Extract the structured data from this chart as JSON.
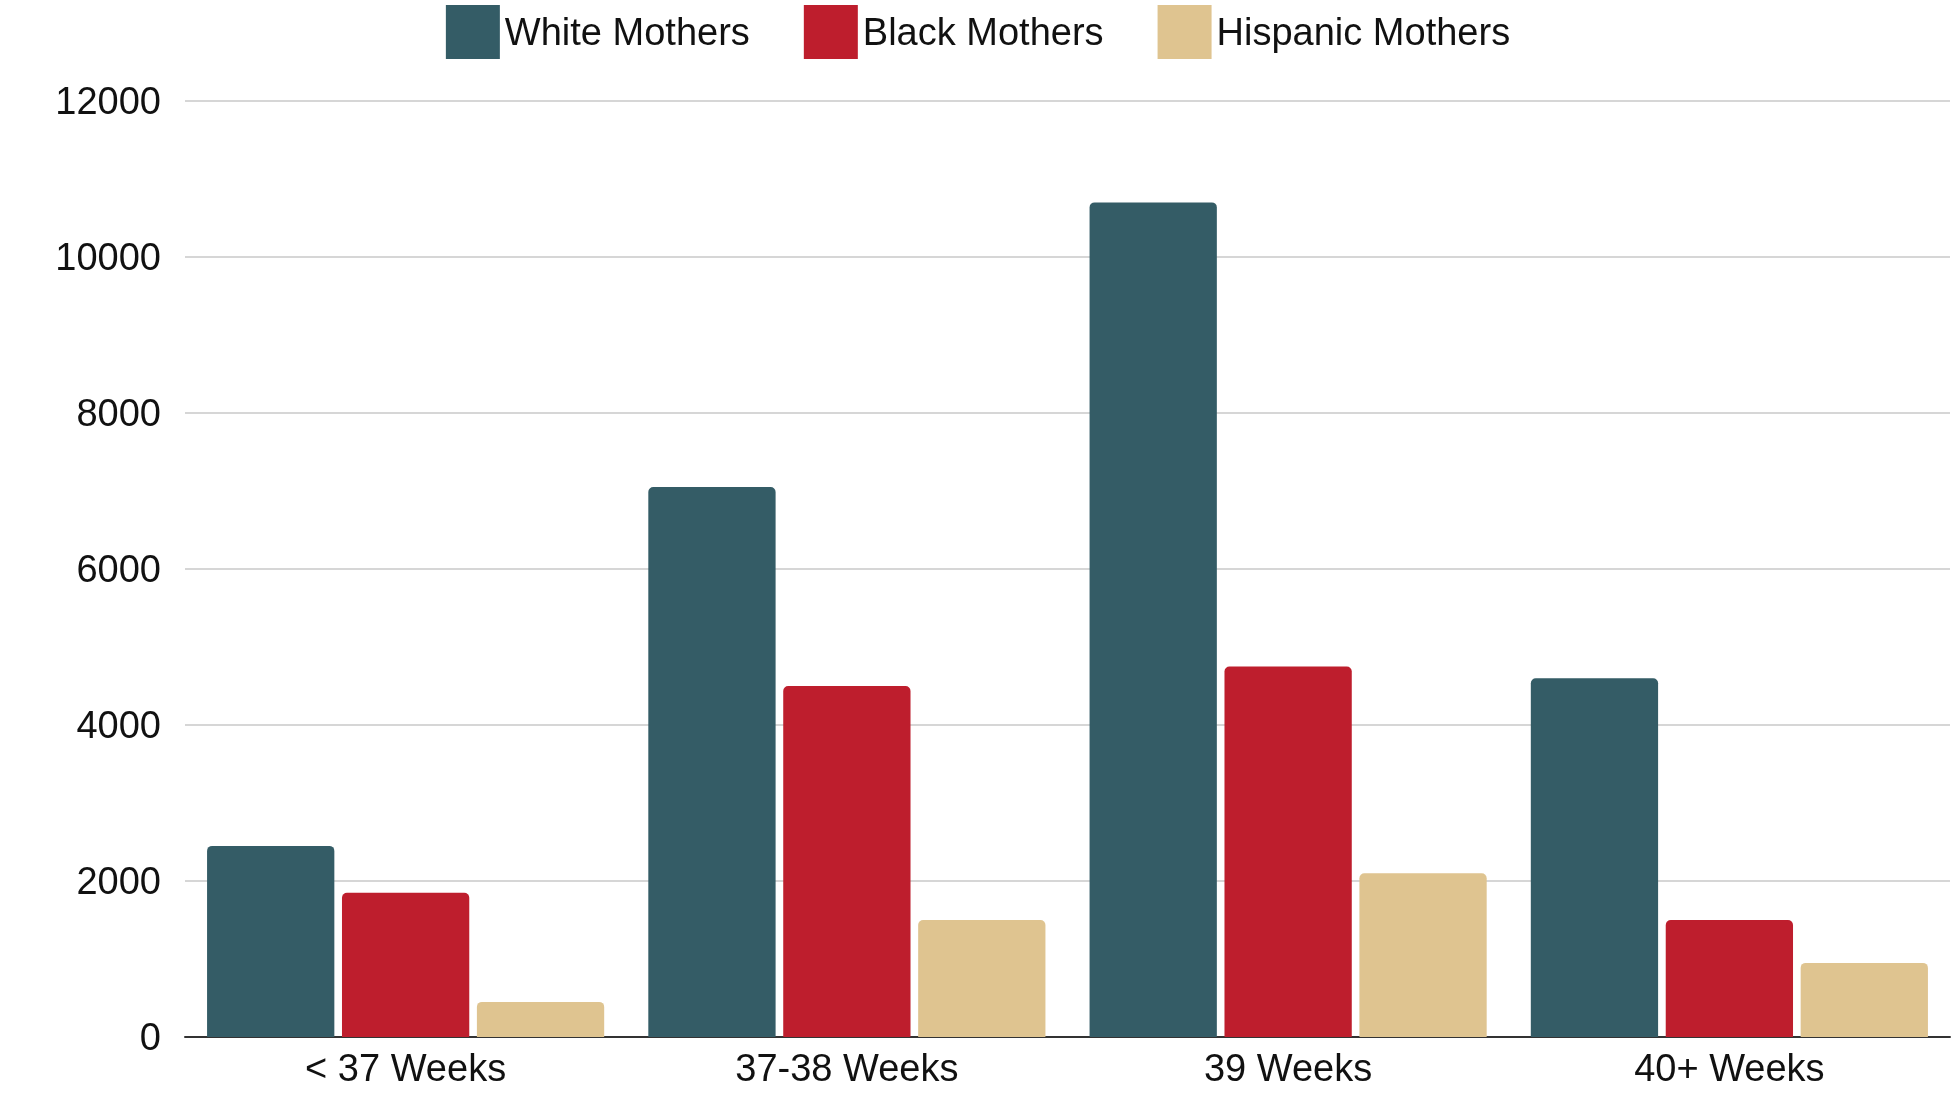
{
  "chart_data": {
    "type": "bar",
    "categories": [
      "< 37 Weeks",
      "37-38 Weeks",
      "39 Weeks",
      "40+ Weeks"
    ],
    "series": [
      {
        "name": "White Mothers",
        "color": "#345c66",
        "values": [
          2450,
          7050,
          10700,
          4600
        ]
      },
      {
        "name": "Black Mothers",
        "color": "#be1e2d",
        "values": [
          1850,
          4500,
          4750,
          1500
        ]
      },
      {
        "name": "Hispanic Mothers",
        "color": "#dfc490",
        "values": [
          450,
          1500,
          2100,
          950
        ]
      }
    ],
    "ylim": [
      0,
      12000
    ],
    "yticks": [
      0,
      2000,
      4000,
      6000,
      8000,
      10000,
      12000
    ],
    "grid": "y",
    "legend": "top"
  }
}
